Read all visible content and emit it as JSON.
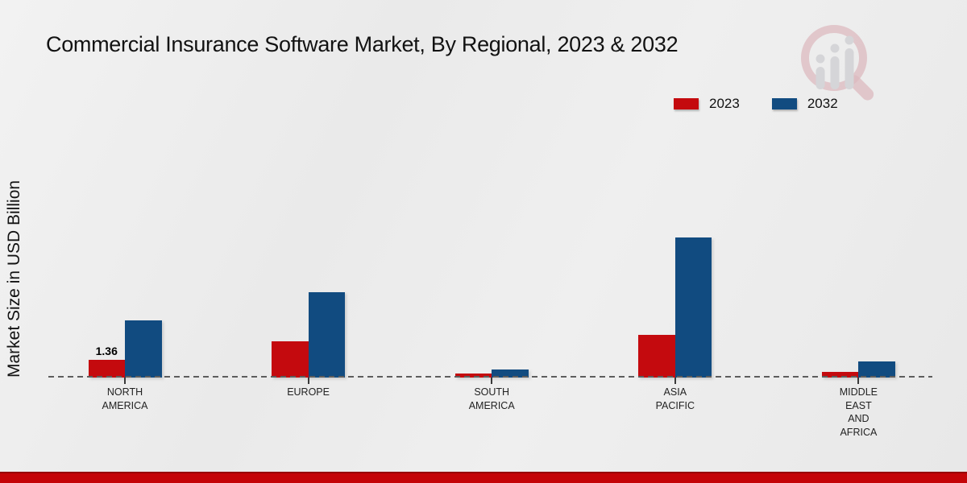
{
  "title": "Commercial Insurance Software Market, By Regional, 2023 & 2032",
  "watermark": {
    "icon": "magnifier-bar-chart-logo",
    "ring_color": "#cf9099",
    "bars_color": "#c3c3c7"
  },
  "footer": {
    "bar_color": "#c40408"
  },
  "chart_data": {
    "type": "bar",
    "title": "Commercial Insurance Software Market, By Regional, 2023 & 2032",
    "xlabel": "",
    "ylabel": "Market Size in USD Billion",
    "categories": [
      "NORTH AMERICA",
      "EUROPE",
      "SOUTH AMERICA",
      "ASIA PACIFIC",
      "MIDDLE EAST AND AFRICA"
    ],
    "category_label_lines": [
      [
        "NORTH",
        "AMERICA"
      ],
      [
        "EUROPE"
      ],
      [
        "SOUTH",
        "AMERICA"
      ],
      [
        "ASIA",
        "PACIFIC"
      ],
      [
        "MIDDLE",
        "EAST",
        "AND",
        "AFRICA"
      ]
    ],
    "series": [
      {
        "name": "2023",
        "color": "#c40a0e",
        "values": [
          1.36,
          2.74,
          0.3,
          3.23,
          0.42
        ],
        "data_labels": [
          "1.36",
          "",
          "",
          "",
          ""
        ]
      },
      {
        "name": "2032",
        "color": "#114b80",
        "values": [
          4.33,
          6.47,
          0.58,
          10.61,
          1.22
        ],
        "data_labels": [
          "",
          "",
          "",
          "",
          ""
        ]
      }
    ],
    "ylim": [
      0,
      11
    ],
    "grid": false,
    "y_axis_ticks_visible": false,
    "legend_position": "top-right",
    "baseline_style": "dashed"
  }
}
